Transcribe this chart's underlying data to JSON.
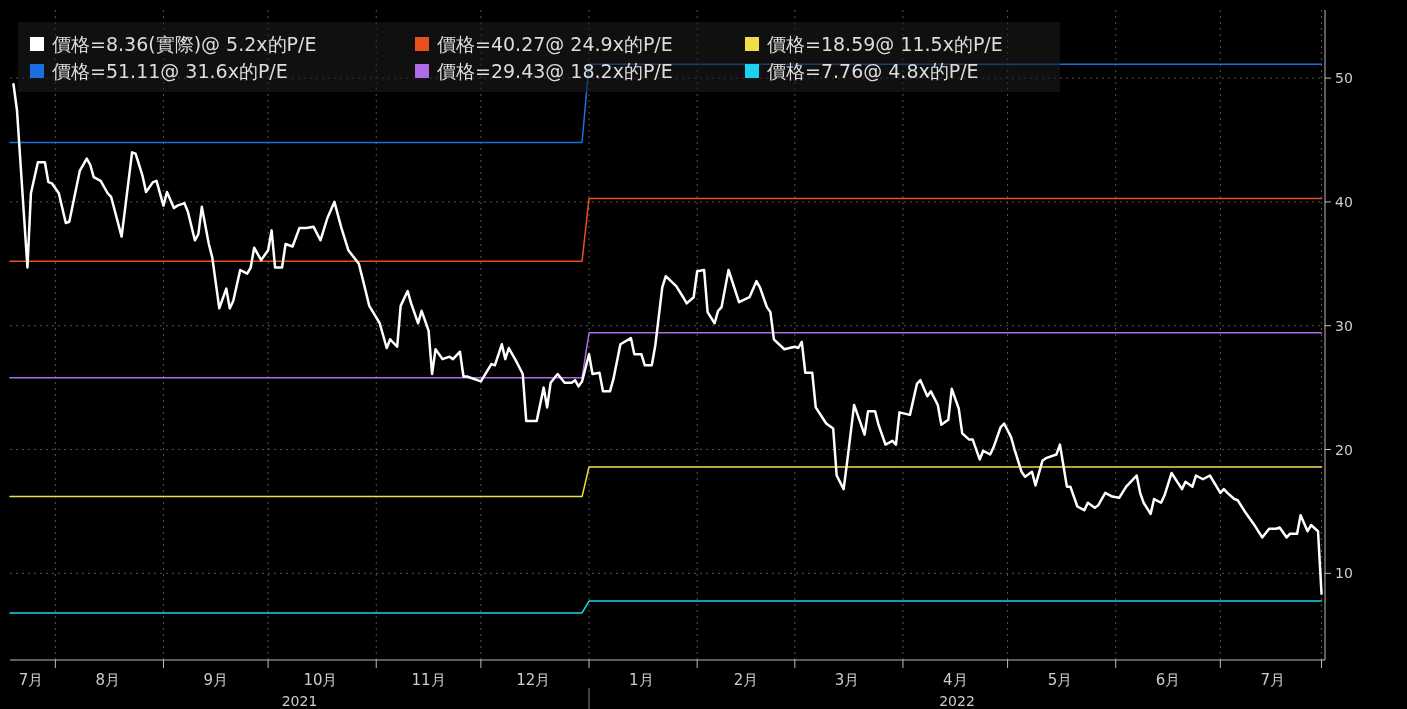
{
  "chart_data": {
    "type": "line",
    "xlim": [
      "2021-07-19",
      "2022-07-31"
    ],
    "ylim": [
      3,
      55.5
    ],
    "yticks": [
      10,
      20,
      30,
      40,
      50
    ],
    "xticks": [
      {
        "value": "2021-07-25",
        "label": "7月"
      },
      {
        "value": "2021-08-01",
        "label": null
      },
      {
        "value": "2021-08-16",
        "label": "8月"
      },
      {
        "value": "2021-09-01",
        "label": null
      },
      {
        "value": "2021-09-16",
        "label": "9月"
      },
      {
        "value": "2021-10-01",
        "label": null
      },
      {
        "value": "2021-10-16",
        "label": "10月"
      },
      {
        "value": "2021-11-01",
        "label": null
      },
      {
        "value": "2021-11-16",
        "label": "11月"
      },
      {
        "value": "2021-12-01",
        "label": null
      },
      {
        "value": "2021-12-16",
        "label": "12月"
      },
      {
        "value": "2022-01-01",
        "label": null
      },
      {
        "value": "2022-01-16",
        "label": "1月"
      },
      {
        "value": "2022-02-01",
        "label": null
      },
      {
        "value": "2022-02-15",
        "label": "2月"
      },
      {
        "value": "2022-03-01",
        "label": null
      },
      {
        "value": "2022-03-16",
        "label": "3月"
      },
      {
        "value": "2022-04-01",
        "label": null
      },
      {
        "value": "2022-04-16",
        "label": "4月"
      },
      {
        "value": "2022-05-01",
        "label": null
      },
      {
        "value": "2022-05-16",
        "label": "5月"
      },
      {
        "value": "2022-06-01",
        "label": null
      },
      {
        "value": "2022-06-16",
        "label": "6月"
      },
      {
        "value": "2022-07-01",
        "label": null
      },
      {
        "value": "2022-07-16",
        "label": "7月"
      },
      {
        "value": "2022-07-30",
        "label": null
      }
    ],
    "grid": true,
    "legend": "top left",
    "annotations": [
      "2021",
      "2022"
    ],
    "series": [
      {
        "name": "價格=8.36(實際)@ 5.2x的P/E",
        "color": "#ffffff",
        "x": [
          "2021-07-20",
          "2021-07-21",
          "2021-07-24",
          "2021-07-25",
          "2021-07-27",
          "2021-07-29",
          "2021-07-30",
          "2021-07-31",
          "2021-08-02",
          "2021-08-04",
          "2021-08-05",
          "2021-08-08",
          "2021-08-10",
          "2021-08-11",
          "2021-08-12",
          "2021-08-14",
          "2021-08-16",
          "2021-08-17",
          "2021-08-20",
          "2021-08-23",
          "2021-08-24",
          "2021-08-26",
          "2021-08-27",
          "2021-08-29",
          "2021-08-30",
          "2021-09-01",
          "2021-09-02",
          "2021-09-04",
          "2021-09-05",
          "2021-09-07",
          "2021-09-08",
          "2021-09-10",
          "2021-09-11",
          "2021-09-12",
          "2021-09-14",
          "2021-09-15",
          "2021-09-17",
          "2021-09-19",
          "2021-09-20",
          "2021-09-21",
          "2021-09-23",
          "2021-09-25",
          "2021-09-26",
          "2021-09-27",
          "2021-09-29",
          "2021-10-01",
          "2021-10-02",
          "2021-10-03",
          "2021-10-05",
          "2021-10-06",
          "2021-10-08",
          "2021-10-10",
          "2021-10-12",
          "2021-10-14",
          "2021-10-16",
          "2021-10-18",
          "2021-10-20",
          "2021-10-22",
          "2021-10-24",
          "2021-10-27",
          "2021-10-28",
          "2021-10-30",
          "2021-11-02",
          "2021-11-04",
          "2021-11-05",
          "2021-11-07",
          "2021-11-08",
          "2021-11-10",
          "2021-11-11",
          "2021-11-13",
          "2021-11-14",
          "2021-11-16",
          "2021-11-17",
          "2021-11-18",
          "2021-11-20",
          "2021-11-22",
          "2021-11-23",
          "2021-11-25",
          "2021-11-26",
          "2021-11-27",
          "2021-12-01",
          "2021-12-04",
          "2021-12-05",
          "2021-12-07",
          "2021-12-08",
          "2021-12-09",
          "2021-12-11",
          "2021-12-13",
          "2021-12-14",
          "2021-12-17",
          "2021-12-19",
          "2021-12-20",
          "2021-12-21",
          "2021-12-23",
          "2021-12-25",
          "2021-12-27",
          "2021-12-28",
          "2021-12-29",
          "2021-12-30",
          "2022-01-01",
          "2022-01-02",
          "2022-01-04",
          "2022-01-05",
          "2022-01-07",
          "2022-01-08",
          "2022-01-10",
          "2022-01-13",
          "2022-01-14",
          "2022-01-16",
          "2022-01-17",
          "2022-01-19",
          "2022-01-20",
          "2022-01-22",
          "2022-01-23",
          "2022-01-26",
          "2022-01-28",
          "2022-01-29",
          "2022-01-31",
          "2022-02-01",
          "2022-02-03",
          "2022-02-04",
          "2022-02-06",
          "2022-02-07",
          "2022-02-08",
          "2022-02-10",
          "2022-02-13",
          "2022-02-16",
          "2022-02-18",
          "2022-02-19",
          "2022-02-21",
          "2022-02-22",
          "2022-02-23",
          "2022-02-26",
          "2022-03-01",
          "2022-03-02",
          "2022-03-03",
          "2022-03-04",
          "2022-03-06",
          "2022-03-07",
          "2022-03-10",
          "2022-03-12",
          "2022-03-13",
          "2022-03-15",
          "2022-03-16",
          "2022-03-18",
          "2022-03-21",
          "2022-03-22",
          "2022-03-24",
          "2022-03-25",
          "2022-03-27",
          "2022-03-29",
          "2022-03-30",
          "2022-03-31",
          "2022-04-03",
          "2022-04-05",
          "2022-04-06",
          "2022-04-08",
          "2022-04-09",
          "2022-04-11",
          "2022-04-12",
          "2022-04-14",
          "2022-04-15",
          "2022-04-17",
          "2022-04-18",
          "2022-04-20",
          "2022-04-21",
          "2022-04-23",
          "2022-04-24",
          "2022-04-26",
          "2022-04-27",
          "2022-04-29",
          "2022-04-30",
          "2022-05-02",
          "2022-05-03",
          "2022-05-05",
          "2022-05-06",
          "2022-05-08",
          "2022-05-09",
          "2022-05-11",
          "2022-05-12",
          "2022-05-15",
          "2022-05-16",
          "2022-05-18",
          "2022-05-19",
          "2022-05-21",
          "2022-05-23",
          "2022-05-24",
          "2022-05-26",
          "2022-05-27",
          "2022-05-29",
          "2022-05-31",
          "2022-06-02",
          "2022-06-04",
          "2022-06-07",
          "2022-06-08",
          "2022-06-09",
          "2022-06-11",
          "2022-06-12",
          "2022-06-14",
          "2022-06-15",
          "2022-06-17",
          "2022-06-20",
          "2022-06-21",
          "2022-06-23",
          "2022-06-24",
          "2022-06-26",
          "2022-06-28",
          "2022-07-01",
          "2022-07-02",
          "2022-07-03",
          "2022-07-05",
          "2022-07-06",
          "2022-07-08",
          "2022-07-11",
          "2022-07-13",
          "2022-07-15",
          "2022-07-17",
          "2022-07-18",
          "2022-07-20",
          "2022-07-21",
          "2022-07-23",
          "2022-07-24",
          "2022-07-26",
          "2022-07-27",
          "2022-07-29",
          "2022-07-30"
        ],
        "values": [
          49.5,
          47.4,
          34.7,
          40.7,
          43.2,
          43.2,
          41.6,
          41.5,
          40.7,
          38.3,
          38.4,
          42.5,
          43.5,
          43.0,
          42.0,
          41.7,
          40.7,
          40.4,
          37.2,
          44.0,
          43.9,
          42.1,
          40.8,
          41.6,
          41.7,
          39.7,
          40.8,
          39.5,
          39.7,
          39.9,
          39.2,
          36.9,
          37.4,
          39.6,
          36.6,
          35.5,
          31.4,
          33.0,
          31.4,
          32.0,
          34.5,
          34.2,
          34.7,
          36.3,
          35.3,
          36.1,
          37.7,
          34.7,
          34.7,
          36.6,
          36.4,
          37.9,
          37.9,
          38.0,
          36.9,
          38.7,
          40.0,
          37.9,
          36.1,
          35.0,
          33.9,
          31.6,
          30.2,
          28.2,
          28.9,
          28.3,
          31.6,
          32.8,
          31.8,
          30.2,
          31.2,
          29.6,
          26.1,
          28.1,
          27.3,
          27.5,
          27.3,
          27.9,
          25.9,
          25.9,
          25.5,
          26.9,
          26.8,
          28.5,
          27.3,
          28.2,
          27.2,
          26.1,
          22.3,
          22.3,
          25.0,
          23.4,
          25.4,
          26.1,
          25.4,
          25.4,
          25.6,
          25.1,
          25.5,
          27.7,
          26.1,
          26.2,
          24.7,
          24.7,
          25.7,
          28.5,
          29.0,
          27.7,
          27.7,
          26.8,
          26.8,
          28.4,
          33.1,
          34.0,
          33.2,
          32.3,
          31.8,
          32.3,
          34.4,
          34.5,
          31.1,
          30.2,
          31.2,
          31.5,
          34.5,
          31.9,
          32.3,
          33.6,
          33.1,
          31.5,
          31.1,
          28.9,
          28.1,
          28.3,
          28.2,
          28.7,
          26.2,
          26.2,
          23.4,
          22.1,
          21.7,
          17.9,
          16.8,
          19.0,
          23.6,
          21.2,
          23.1,
          23.1,
          22.0,
          20.4,
          20.7,
          20.4,
          23.0,
          22.8,
          25.3,
          25.6,
          24.3,
          24.7,
          23.6,
          22.0,
          22.4,
          24.9,
          23.3,
          21.3,
          20.8,
          20.8,
          19.2,
          19.9,
          19.6,
          20.2,
          21.8,
          22.1,
          21.0,
          20.0,
          18.2,
          17.8,
          18.2,
          17.1,
          19.1,
          19.3,
          19.6,
          20.4,
          17.0,
          17.0,
          15.4,
          15.1,
          15.7,
          15.3,
          15.5,
          16.5,
          16.2,
          16.1,
          17.0,
          17.9,
          16.5,
          15.7,
          14.8,
          16.0,
          15.7,
          16.3,
          18.1,
          16.8,
          17.4,
          17.0,
          17.9,
          17.6,
          17.9,
          16.5,
          16.8,
          16.5,
          16.0,
          15.9,
          15.0,
          13.8,
          12.9,
          13.6,
          13.6,
          13.7,
          12.9,
          13.2,
          13.2,
          14.7,
          13.4,
          13.9,
          13.4,
          8.36
        ]
      },
      {
        "name": "價格=40.27@ 24.9x的P/E",
        "color": "#e8501e",
        "x": [
          "2021-07-19",
          "2021-12-30",
          "2022-01-01",
          "2022-07-30"
        ],
        "values": [
          35.2,
          35.2,
          40.27,
          40.27
        ]
      },
      {
        "name": "價格=18.59@ 11.5x的P/E",
        "color": "#f2dc4a",
        "x": [
          "2021-07-19",
          "2021-12-30",
          "2022-01-01",
          "2022-07-30"
        ],
        "values": [
          16.2,
          16.2,
          18.59,
          18.59
        ]
      },
      {
        "name": "價格=51.11@ 31.6x的P/E",
        "color": "#1a70e0",
        "x": [
          "2021-07-19",
          "2021-12-30",
          "2022-01-01",
          "2022-07-30"
        ],
        "values": [
          44.8,
          44.8,
          51.11,
          51.11
        ]
      },
      {
        "name": "價格=29.43@ 18.2x的P/E",
        "color": "#b06be8",
        "x": [
          "2021-07-19",
          "2021-12-30",
          "2022-01-01",
          "2022-07-30"
        ],
        "values": [
          25.8,
          25.8,
          29.43,
          29.43
        ]
      },
      {
        "name": "價格=7.76@ 4.8x的P/E",
        "color": "#19d3ef",
        "x": [
          "2021-07-19",
          "2021-12-30",
          "2022-01-01",
          "2022-07-30"
        ],
        "values": [
          6.8,
          6.8,
          7.76,
          7.76
        ]
      }
    ]
  }
}
